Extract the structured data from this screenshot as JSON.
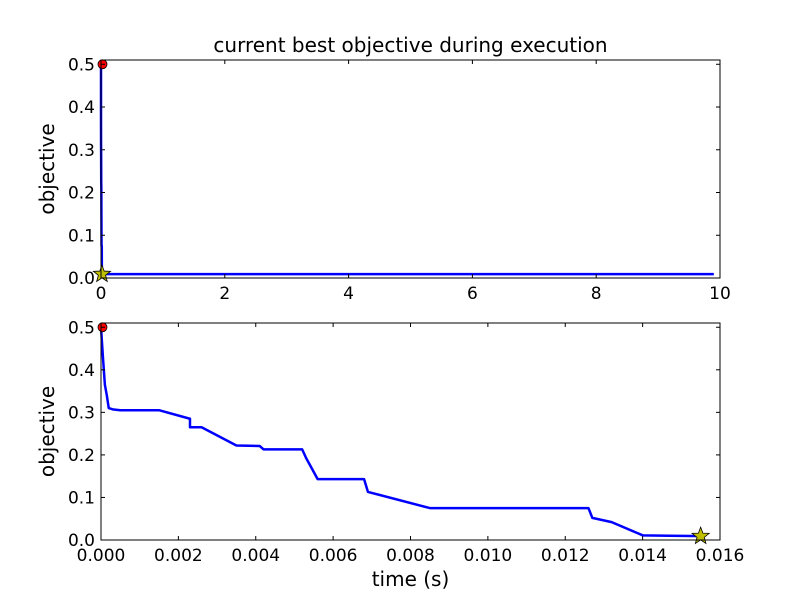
{
  "chart_data": [
    {
      "type": "line",
      "title": "current best objective during execution",
      "xlabel": "",
      "ylabel": "objective",
      "xlim": [
        0,
        10
      ],
      "ylim": [
        0,
        0.51
      ],
      "xticks": [
        0,
        2,
        4,
        6,
        8,
        10
      ],
      "xtick_labels": [
        "0",
        "2",
        "4",
        "6",
        "8",
        "10"
      ],
      "yticks": [
        0.0,
        0.1,
        0.2,
        0.3,
        0.4,
        0.5
      ],
      "ytick_labels": [
        "0.0",
        "0.1",
        "0.2",
        "0.3",
        "0.4",
        "0.5"
      ],
      "grid": false,
      "series": [
        {
          "color": "#0000ff",
          "x": [
            0,
            0.0001,
            0.001,
            0.0023,
            0.0035,
            0.0053,
            0.0068,
            0.0085,
            0.0126,
            0.014,
            0.0156,
            9.9
          ],
          "y": [
            0.5,
            0.365,
            0.31,
            0.285,
            0.222,
            0.213,
            0.143,
            0.075,
            0.075,
            0.01,
            0.009,
            0.009
          ]
        }
      ],
      "markers": [
        {
          "shape": "circle",
          "color": "#ff0000",
          "x": 0,
          "y": 0.5
        },
        {
          "shape": "star",
          "color": "#bfbf00",
          "x": 0.0156,
          "y": 0.009
        }
      ]
    },
    {
      "type": "line",
      "title": "",
      "xlabel": "time (s)",
      "ylabel": "objective",
      "xlim": [
        0,
        0.016
      ],
      "ylim": [
        0,
        0.51
      ],
      "xticks": [
        0,
        0.002,
        0.004,
        0.006,
        0.008,
        0.01,
        0.012,
        0.014,
        0.016
      ],
      "xtick_labels": [
        "0.000",
        "0.002",
        "0.004",
        "0.006",
        "0.008",
        "0.010",
        "0.012",
        "0.014",
        "0.016"
      ],
      "yticks": [
        0.0,
        0.1,
        0.2,
        0.3,
        0.4,
        0.5
      ],
      "ytick_labels": [
        "0.0",
        "0.1",
        "0.2",
        "0.3",
        "0.4",
        "0.5"
      ],
      "grid": false,
      "series": [
        {
          "color": "#0000ff",
          "x": [
            0,
            5e-05,
            0.0001,
            0.00015,
            0.0002,
            0.0003,
            0.0005,
            0.0015,
            0.0023,
            0.0023,
            0.0026,
            0.0035,
            0.0041,
            0.0042,
            0.0052,
            0.0053,
            0.0056,
            0.0068,
            0.0069,
            0.0085,
            0.0126,
            0.0127,
            0.0132,
            0.014,
            0.0147,
            0.0156
          ],
          "y": [
            0.5,
            0.43,
            0.365,
            0.34,
            0.31,
            0.307,
            0.305,
            0.305,
            0.285,
            0.265,
            0.265,
            0.222,
            0.221,
            0.213,
            0.213,
            0.193,
            0.143,
            0.143,
            0.113,
            0.075,
            0.075,
            0.052,
            0.042,
            0.011,
            0.01,
            0.009
          ]
        }
      ],
      "markers": [
        {
          "shape": "circle",
          "color": "#ff0000",
          "x": 0,
          "y": 0.5
        },
        {
          "shape": "star",
          "color": "#bfbf00",
          "x": 0.0155,
          "y": 0.009
        }
      ]
    }
  ]
}
